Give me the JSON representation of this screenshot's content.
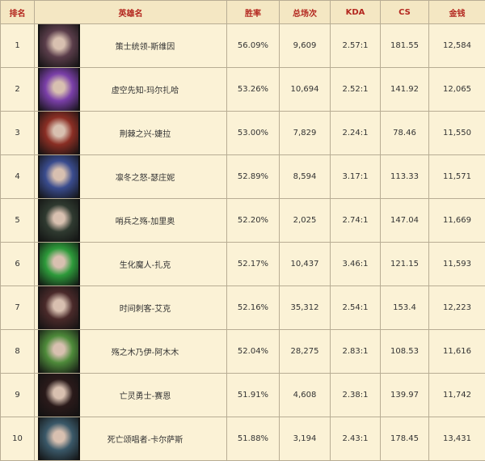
{
  "headers": [
    "排名",
    "英雄名",
    "胜率",
    "总场次",
    "KDA",
    "CS",
    "金钱"
  ],
  "rows": [
    {
      "rank": "1",
      "name": "策士统领-斯维因",
      "win": "56.09%",
      "games": "9,609",
      "kda": "2.57:1",
      "cs": "181.55",
      "gold": "12,584",
      "color": "#5a3d4a"
    },
    {
      "rank": "2",
      "name": "虚空先知-玛尔扎哈",
      "win": "53.26%",
      "games": "10,694",
      "kda": "2.52:1",
      "cs": "141.92",
      "gold": "12,065",
      "color": "#7a3fa8"
    },
    {
      "rank": "3",
      "name": "荆棘之兴-婕拉",
      "win": "53.00%",
      "games": "7,829",
      "kda": "2.24:1",
      "cs": "78.46",
      "gold": "11,550",
      "color": "#8a2e24"
    },
    {
      "rank": "4",
      "name": "凛冬之怒-瑟庄妮",
      "win": "52.89%",
      "games": "8,594",
      "kda": "3.17:1",
      "cs": "113.33",
      "gold": "11,571",
      "color": "#3a4c8e"
    },
    {
      "rank": "5",
      "name": "哨兵之殇-加里奥",
      "win": "52.20%",
      "games": "2,025",
      "kda": "2.74:1",
      "cs": "147.04",
      "gold": "11,669",
      "color": "#2f3a30"
    },
    {
      "rank": "6",
      "name": "生化魔人-扎克",
      "win": "52.17%",
      "games": "10,437",
      "kda": "3.46:1",
      "cs": "121.15",
      "gold": "11,593",
      "color": "#2d9a3a"
    },
    {
      "rank": "7",
      "name": "时间刺客-艾克",
      "win": "52.16%",
      "games": "35,312",
      "kda": "2.54:1",
      "cs": "153.4",
      "gold": "12,223",
      "color": "#4a2a2a"
    },
    {
      "rank": "8",
      "name": "殇之木乃伊-阿木木",
      "win": "52.04%",
      "games": "28,275",
      "kda": "2.83:1",
      "cs": "108.53",
      "gold": "11,616",
      "color": "#4e8a3a"
    },
    {
      "rank": "9",
      "name": "亡灵勇士-赛恩",
      "win": "51.91%",
      "games": "4,608",
      "kda": "2.38:1",
      "cs": "139.97",
      "gold": "11,742",
      "color": "#2a1a1a"
    },
    {
      "rank": "10",
      "name": "死亡颂唱者-卡尔萨斯",
      "win": "51.88%",
      "games": "3,194",
      "kda": "2.43:1",
      "cs": "178.45",
      "gold": "13,431",
      "color": "#3a5868"
    }
  ]
}
